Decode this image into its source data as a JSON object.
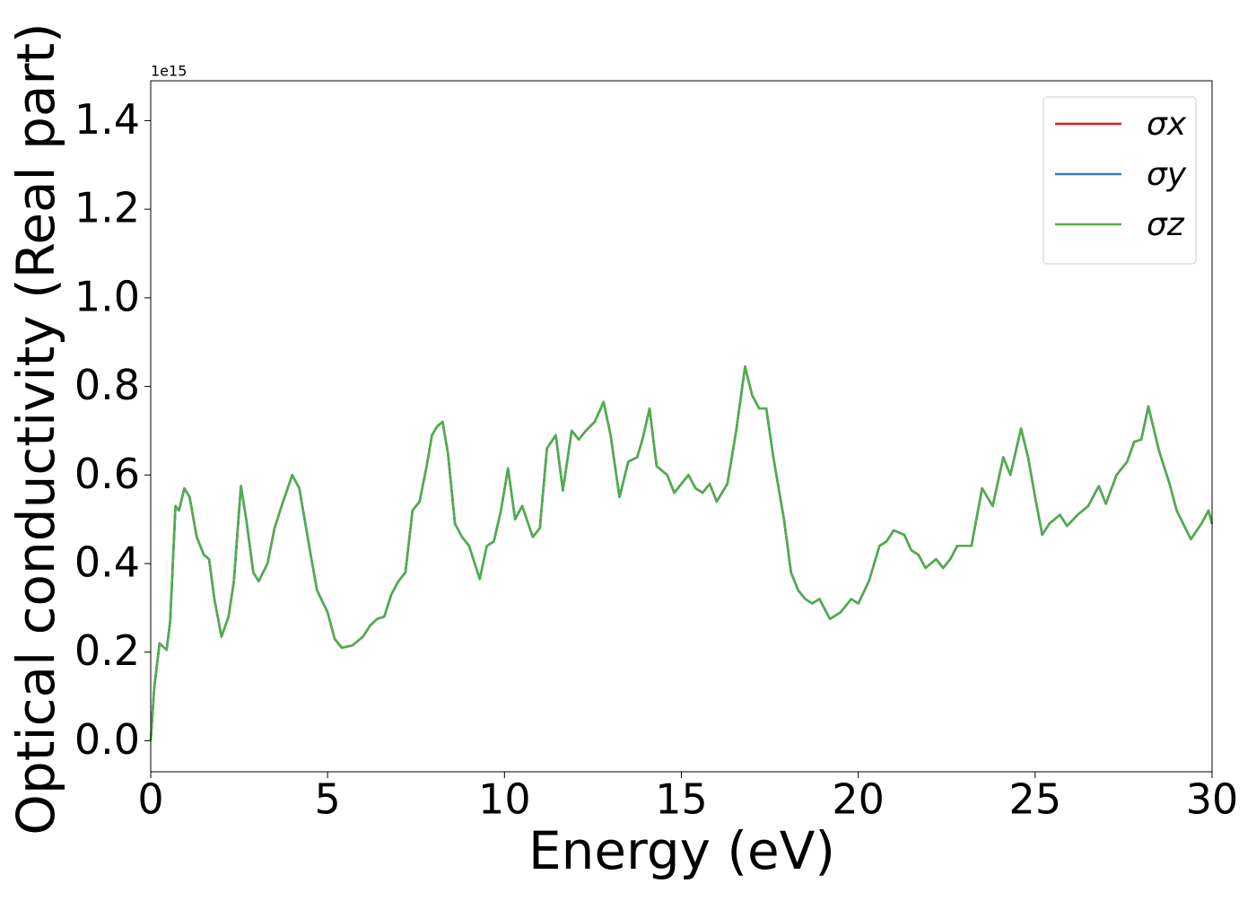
{
  "chart_data": {
    "type": "line",
    "xlabel": "Energy (eV)",
    "ylabel": "Optical conductivity (Real part)",
    "offset_text": "1e15",
    "xlim": [
      0,
      30
    ],
    "ylim": [
      -0.07,
      1.49
    ],
    "xticks": [
      0,
      5,
      10,
      15,
      20,
      25,
      30
    ],
    "yticks": [
      {
        "value": 0,
        "label": "0.0"
      },
      0.2,
      0.4,
      0.6,
      0.8,
      {
        "value": 1,
        "label": "1.0"
      },
      1.2,
      1.4
    ],
    "legend": "upper right",
    "grid": false,
    "x": [
      0,
      0.1,
      0.25,
      0.45,
      0.55,
      0.7,
      0.8,
      0.95,
      1.1,
      1.3,
      1.5,
      1.65,
      1.8,
      2.0,
      2.2,
      2.35,
      2.55,
      2.7,
      2.9,
      3.05,
      3.3,
      3.5,
      3.7,
      4.0,
      4.2,
      4.5,
      4.7,
      5.0,
      5.2,
      5.4,
      5.7,
      6.0,
      6.2,
      6.4,
      6.6,
      6.8,
      7.0,
      7.2,
      7.4,
      7.6,
      7.8,
      7.95,
      8.1,
      8.25,
      8.4,
      8.6,
      8.8,
      9.0,
      9.3,
      9.5,
      9.7,
      9.9,
      10.1,
      10.3,
      10.5,
      10.8,
      11.0,
      11.2,
      11.45,
      11.65,
      11.9,
      12.1,
      12.3,
      12.55,
      12.8,
      13.0,
      13.25,
      13.5,
      13.75,
      13.9,
      14.1,
      14.3,
      14.6,
      14.8,
      15.0,
      15.2,
      15.4,
      15.6,
      15.8,
      16.0,
      16.3,
      16.55,
      16.8,
      17.0,
      17.2,
      17.4,
      17.6,
      17.9,
      18.1,
      18.3,
      18.5,
      18.7,
      18.9,
      19.2,
      19.5,
      19.8,
      20.0,
      20.3,
      20.6,
      20.8,
      21.0,
      21.3,
      21.5,
      21.7,
      21.9,
      22.2,
      22.4,
      22.6,
      22.8,
      23.0,
      23.2,
      23.5,
      23.8,
      24.1,
      24.3,
      24.6,
      24.8,
      25.0,
      25.2,
      25.4,
      25.7,
      25.9,
      26.2,
      26.5,
      26.8,
      27.0,
      27.3,
      27.6,
      27.8,
      28.0,
      28.2,
      28.5,
      28.8,
      29.0,
      29.4,
      29.7,
      29.9,
      30.0
    ],
    "series": [
      {
        "name": "σx",
        "color": "#e41a1c",
        "values": [
          0,
          0.12,
          0.22,
          0.205,
          0.27,
          0.53,
          0.52,
          0.57,
          0.55,
          0.46,
          0.42,
          0.41,
          0.32,
          0.235,
          0.28,
          0.36,
          0.575,
          0.5,
          0.38,
          0.36,
          0.4,
          0.48,
          0.53,
          0.6,
          0.57,
          0.43,
          0.34,
          0.29,
          0.23,
          0.21,
          0.215,
          0.235,
          0.26,
          0.275,
          0.28,
          0.33,
          0.36,
          0.38,
          0.52,
          0.54,
          0.62,
          0.69,
          0.71,
          0.72,
          0.65,
          0.49,
          0.46,
          0.44,
          0.365,
          0.44,
          0.45,
          0.52,
          0.615,
          0.5,
          0.53,
          0.46,
          0.48,
          0.66,
          0.69,
          0.565,
          0.7,
          0.68,
          0.7,
          0.72,
          0.765,
          0.69,
          0.55,
          0.63,
          0.64,
          0.68,
          0.75,
          0.62,
          0.6,
          0.56,
          0.58,
          0.6,
          0.57,
          0.56,
          0.58,
          0.54,
          0.58,
          0.7,
          0.845,
          0.78,
          0.75,
          0.75,
          0.64,
          0.5,
          0.38,
          0.34,
          0.32,
          0.31,
          0.32,
          0.275,
          0.29,
          0.32,
          0.31,
          0.36,
          0.44,
          0.45,
          0.475,
          0.465,
          0.43,
          0.42,
          0.39,
          0.41,
          0.39,
          0.41,
          0.44,
          0.44,
          0.44,
          0.57,
          0.53,
          0.64,
          0.6,
          0.705,
          0.64,
          0.55,
          0.465,
          0.49,
          0.51,
          0.485,
          0.51,
          0.53,
          0.575,
          0.535,
          0.6,
          0.63,
          0.675,
          0.68,
          0.755,
          0.655,
          0.58,
          0.52,
          0.455,
          0.49,
          0.52,
          0.49
        ]
      },
      {
        "name": "σy",
        "color": "#377eb8",
        "values": [
          0,
          0.12,
          0.22,
          0.205,
          0.27,
          0.53,
          0.52,
          0.57,
          0.55,
          0.46,
          0.42,
          0.41,
          0.32,
          0.235,
          0.28,
          0.36,
          0.575,
          0.5,
          0.38,
          0.36,
          0.4,
          0.48,
          0.53,
          0.6,
          0.57,
          0.43,
          0.34,
          0.29,
          0.23,
          0.21,
          0.215,
          0.235,
          0.26,
          0.275,
          0.28,
          0.33,
          0.36,
          0.38,
          0.52,
          0.54,
          0.62,
          0.69,
          0.71,
          0.72,
          0.65,
          0.49,
          0.46,
          0.44,
          0.365,
          0.44,
          0.45,
          0.52,
          0.615,
          0.5,
          0.53,
          0.46,
          0.48,
          0.66,
          0.69,
          0.565,
          0.7,
          0.68,
          0.7,
          0.72,
          0.765,
          0.69,
          0.55,
          0.63,
          0.64,
          0.68,
          0.75,
          0.62,
          0.6,
          0.56,
          0.58,
          0.6,
          0.57,
          0.56,
          0.58,
          0.54,
          0.58,
          0.7,
          0.845,
          0.78,
          0.75,
          0.75,
          0.64,
          0.5,
          0.38,
          0.34,
          0.32,
          0.31,
          0.32,
          0.275,
          0.29,
          0.32,
          0.31,
          0.36,
          0.44,
          0.45,
          0.475,
          0.465,
          0.43,
          0.42,
          0.39,
          0.41,
          0.39,
          0.41,
          0.44,
          0.44,
          0.44,
          0.57,
          0.53,
          0.64,
          0.6,
          0.705,
          0.64,
          0.55,
          0.465,
          0.49,
          0.51,
          0.485,
          0.51,
          0.53,
          0.575,
          0.535,
          0.6,
          0.63,
          0.675,
          0.68,
          0.755,
          0.655,
          0.58,
          0.52,
          0.455,
          0.49,
          0.52,
          0.49
        ]
      },
      {
        "name": "σz",
        "color": "#4daf4a",
        "values": [
          0,
          0.12,
          0.22,
          0.205,
          0.27,
          0.53,
          0.52,
          0.57,
          0.55,
          0.46,
          0.42,
          0.41,
          0.32,
          0.235,
          0.28,
          0.36,
          0.575,
          0.5,
          0.38,
          0.36,
          0.4,
          0.48,
          0.53,
          0.6,
          0.57,
          0.43,
          0.34,
          0.29,
          0.23,
          0.21,
          0.215,
          0.235,
          0.26,
          0.275,
          0.28,
          0.33,
          0.36,
          0.38,
          0.52,
          0.54,
          0.62,
          0.69,
          0.71,
          0.72,
          0.65,
          0.49,
          0.46,
          0.44,
          0.365,
          0.44,
          0.45,
          0.52,
          0.615,
          0.5,
          0.53,
          0.46,
          0.48,
          0.66,
          0.69,
          0.565,
          0.7,
          0.68,
          0.7,
          0.72,
          0.765,
          0.69,
          0.55,
          0.63,
          0.64,
          0.68,
          0.75,
          0.62,
          0.6,
          0.56,
          0.58,
          0.6,
          0.57,
          0.56,
          0.58,
          0.54,
          0.58,
          0.7,
          0.845,
          0.78,
          0.75,
          0.75,
          0.64,
          0.5,
          0.38,
          0.34,
          0.32,
          0.31,
          0.32,
          0.275,
          0.29,
          0.32,
          0.31,
          0.36,
          0.44,
          0.45,
          0.475,
          0.465,
          0.43,
          0.42,
          0.39,
          0.41,
          0.39,
          0.41,
          0.44,
          0.44,
          0.44,
          0.57,
          0.53,
          0.64,
          0.6,
          0.705,
          0.64,
          0.55,
          0.465,
          0.49,
          0.51,
          0.485,
          0.51,
          0.53,
          0.575,
          0.535,
          0.6,
          0.63,
          0.675,
          0.68,
          0.755,
          0.655,
          0.58,
          0.52,
          0.455,
          0.49,
          0.52,
          0.49
        ]
      }
    ]
  }
}
